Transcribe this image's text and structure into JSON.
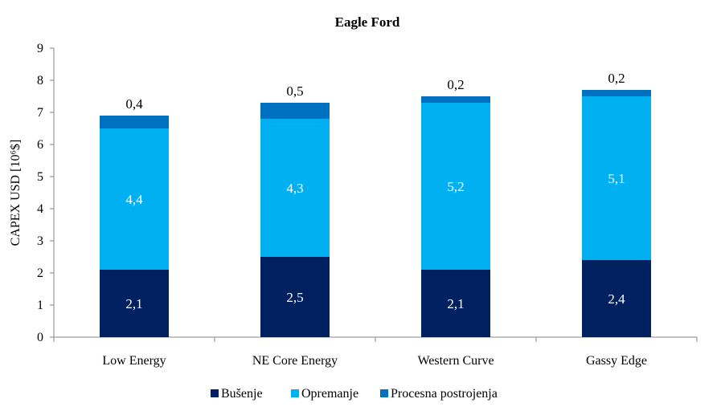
{
  "chart_data": {
    "type": "bar",
    "stacked": true,
    "title": "Eagle Ford",
    "ylabel": "CAPEX USD [10⁶$]",
    "xlabel": "",
    "ylim": [
      0,
      9
    ],
    "yticks": [
      0,
      1,
      2,
      3,
      4,
      5,
      6,
      7,
      8,
      9
    ],
    "categories": [
      "Low Energy",
      "NE Core Energy",
      "Western Curve",
      "Gassy Edge"
    ],
    "series": [
      {
        "name": "Bušenje",
        "values": [
          2.1,
          2.5,
          2.1,
          2.4
        ],
        "labels": [
          "2,1",
          "2,5",
          "2,1",
          "2,4"
        ],
        "color": "#002060",
        "label_color": "#ffffff"
      },
      {
        "name": "Opremanje",
        "values": [
          4.4,
          4.3,
          5.2,
          5.1
        ],
        "labels": [
          "4,4",
          "4,3",
          "5,2",
          "5,1"
        ],
        "color": "#00b0f0",
        "label_color": "#ffffff"
      },
      {
        "name": "Procesna postrojenja",
        "values": [
          0.4,
          0.5,
          0.2,
          0.2
        ],
        "labels": [
          "0,4",
          "0,5",
          "0,2",
          "0,2"
        ],
        "color": "#0070c0",
        "label_color": "#000000"
      }
    ],
    "grid": false,
    "legend": "bottom"
  }
}
